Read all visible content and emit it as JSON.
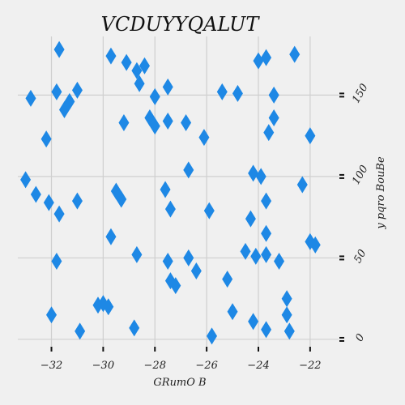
{
  "chart_data": {
    "type": "scatter",
    "title": "VCDUYYQALUT",
    "xlabel": "GRumO  B",
    "ylabel": "y pqro BouBe",
    "xlim": [
      -33.3,
      -20.9
    ],
    "ylim": [
      -4,
      186
    ],
    "y_axis_side": "right",
    "grid": true,
    "xticks": [
      -32,
      -30,
      -28,
      -26,
      -24,
      -22
    ],
    "xtick_labels": [
      "−32",
      "−30",
      "−28",
      "−26",
      "−24",
      "−22"
    ],
    "yticks": [
      0,
      50,
      100,
      150
    ],
    "ytick_labels": [
      "0",
      "50",
      "100",
      "150"
    ],
    "marker": "diamond",
    "color": "#1e88e5",
    "series": [
      {
        "x": [
          -31.7,
          -29.7,
          -29.1,
          -28.7,
          -28.4,
          -28.0,
          -27.5,
          -27.5,
          -25.4,
          -24.8,
          -23.7,
          -23.4,
          -23.4,
          -24.0,
          -23.6,
          -22.6,
          -22.0,
          -32.8,
          -32.2,
          -31.8,
          -31.5,
          -31.3,
          -31.0,
          -29.2,
          -28.6,
          -28.0,
          -28.2,
          -26.8,
          -26.1,
          -24.2,
          -23.9,
          -22.3,
          -33.0,
          -32.6,
          -32.1,
          -31.7,
          -31.0,
          -29.5,
          -29.3,
          -27.6,
          -27.4,
          -26.7,
          -25.9,
          -24.3,
          -23.7,
          -23.7,
          -22.0,
          -21.8,
          -31.8,
          -29.7,
          -28.7,
          -27.5,
          -26.4,
          -26.7,
          -27.4,
          -27.2,
          -25.2,
          -24.5,
          -24.1,
          -23.7,
          -23.2,
          -22.9,
          -22.9,
          -22.8,
          -32.0,
          -30.9,
          -30.2,
          -30.0,
          -29.8,
          -28.8,
          -25.8,
          -25.0,
          -24.2,
          -23.7
        ],
        "y": [
          178,
          174,
          170,
          165,
          168,
          149,
          155,
          134,
          152,
          151,
          173,
          150,
          136,
          171,
          127,
          175,
          125,
          148,
          123,
          152,
          141,
          146,
          153,
          133,
          157,
          131,
          136,
          133,
          124,
          102,
          100,
          95,
          98,
          89,
          84,
          77,
          85,
          91,
          86,
          92,
          80,
          104,
          79,
          74,
          65,
          85,
          60,
          58,
          48,
          63,
          52,
          48,
          42,
          50,
          36,
          33,
          37,
          54,
          51,
          52,
          48,
          25,
          15,
          5,
          15,
          5,
          21,
          22,
          20,
          7,
          2,
          17,
          11,
          6
        ]
      }
    ]
  }
}
